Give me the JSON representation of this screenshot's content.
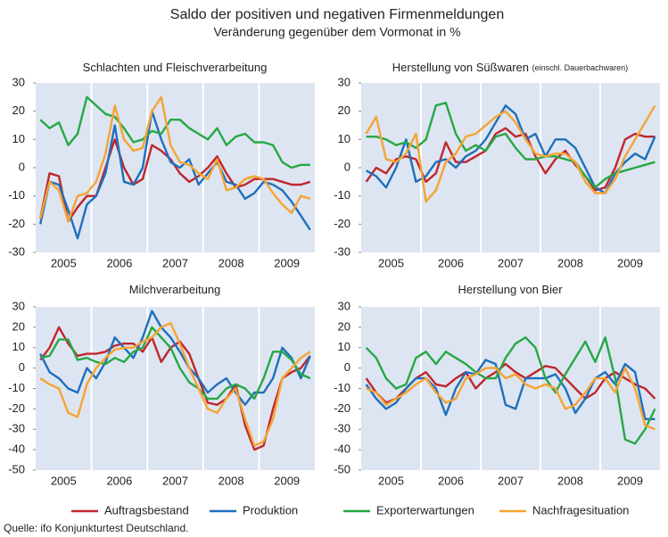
{
  "title": "Saldo der positiven und negativen Firmenmeldungen",
  "subtitle": "Veränderung gegenüber dem Vormonat in %",
  "source": "Quelle: ifo Konjunkturtest Deutschland.",
  "chart_data": [
    {
      "type": "line",
      "title": "Schlachten und Fleischverarbeitung",
      "categories": [
        null,
        null,
        null,
        "2005",
        null,
        null,
        null,
        null,
        null,
        "2006",
        null,
        null,
        null,
        null,
        null,
        "2007",
        null,
        null,
        null,
        null,
        null,
        "2008",
        null,
        null,
        null,
        null,
        null,
        "2009",
        null,
        null
      ],
      "ylim": [
        -30,
        30
      ],
      "yticks": [
        -30,
        -20,
        -10,
        0,
        10,
        20,
        30
      ],
      "series": [
        {
          "name": "Auftragsbestand",
          "color": "#c0272d",
          "values": [
            -18,
            -2,
            -3,
            -19,
            -14,
            -10,
            -10,
            0,
            10,
            0,
            -6,
            -4,
            8,
            6,
            3,
            -2,
            -5,
            -3,
            0,
            4,
            -2,
            -7,
            -6,
            -4,
            -4,
            -4,
            -5,
            -6,
            -6,
            -5
          ]
        },
        {
          "name": "Produktion",
          "color": "#1f6fbb",
          "values": [
            -20,
            -5,
            -6,
            -15,
            -25,
            -13,
            -10,
            -2,
            15,
            -5,
            -6,
            0,
            20,
            10,
            2,
            0,
            3,
            -6,
            -2,
            2,
            -5,
            -6,
            -11,
            -9,
            -5,
            -6,
            -8,
            -12,
            -17,
            -22
          ]
        },
        {
          "name": "Exporterwartungen",
          "color": "#27a844",
          "values": [
            17,
            14,
            16,
            8,
            12,
            25,
            22,
            19,
            18,
            14,
            9,
            10,
            13,
            12,
            17,
            17,
            14,
            12,
            10,
            14,
            8,
            11,
            12,
            9,
            9,
            8,
            2,
            0,
            1,
            1
          ]
        },
        {
          "name": "Nachfragesituation",
          "color": "#f5a432",
          "values": [
            -18,
            -5,
            -8,
            -19,
            -10,
            -9,
            -5,
            5,
            22,
            10,
            6,
            7,
            20,
            25,
            8,
            2,
            1,
            -2,
            -4,
            3,
            -8,
            -7,
            -4,
            -3,
            -4,
            -9,
            -13,
            -16,
            -10,
            -11
          ]
        }
      ]
    },
    {
      "type": "line",
      "title": "Herstellung von Süßwaren",
      "note": "(einschl. Dauerbachwaren)",
      "categories": [
        null,
        null,
        null,
        "2005",
        null,
        null,
        null,
        null,
        null,
        "2006",
        null,
        null,
        null,
        null,
        null,
        "2007",
        null,
        null,
        null,
        null,
        null,
        "2008",
        null,
        null,
        null,
        null,
        null,
        "2009",
        null,
        null
      ],
      "ylim": [
        -30,
        30
      ],
      "yticks": [
        -30,
        -20,
        -10,
        0,
        10,
        20,
        30
      ],
      "series": [
        {
          "name": "Auftragsbestand",
          "color": "#c0272d",
          "values": [
            -5,
            0,
            -2,
            3,
            4,
            3,
            -5,
            -2,
            9,
            2,
            2,
            4,
            6,
            12,
            14,
            11,
            12,
            4,
            -2,
            3,
            6,
            1,
            -3,
            -8,
            -7,
            0,
            10,
            12,
            11,
            11
          ]
        },
        {
          "name": "Produktion",
          "color": "#1f6fbb",
          "values": [
            -1,
            -3,
            -7,
            0,
            10,
            -5,
            -3,
            2,
            3,
            0,
            4,
            6,
            10,
            16,
            22,
            19,
            10,
            12,
            4,
            10,
            10,
            7,
            0,
            -7,
            -9,
            -2,
            2,
            5,
            3,
            11
          ]
        },
        {
          "name": "Exporterwartungen",
          "color": "#27a844",
          "values": [
            11,
            11,
            10,
            8,
            9,
            7,
            10,
            22,
            23,
            12,
            6,
            8,
            6,
            11,
            12,
            7,
            3,
            3,
            4,
            4,
            3,
            2,
            -3,
            -7,
            -4,
            -2,
            -1,
            0,
            1,
            2
          ]
        },
        {
          "name": "Nachfragesituation",
          "color": "#f5a432",
          "values": [
            12,
            18,
            3,
            2,
            5,
            12,
            -12,
            -8,
            2,
            5,
            11,
            12,
            15,
            18,
            20,
            16,
            10,
            5,
            4,
            5,
            5,
            2,
            -5,
            -9,
            -9,
            -4,
            4,
            10,
            16,
            22
          ]
        }
      ]
    },
    {
      "type": "line",
      "title": "Milchverarbeitung",
      "categories": [
        null,
        null,
        null,
        "2005",
        null,
        null,
        null,
        null,
        null,
        "2006",
        null,
        null,
        null,
        null,
        null,
        "2007",
        null,
        null,
        null,
        null,
        null,
        "2008",
        null,
        null,
        null,
        null,
        null,
        "2009",
        null,
        null
      ],
      "ylim": [
        -50,
        30
      ],
      "yticks": [
        -50,
        -40,
        -30,
        -20,
        -10,
        0,
        10,
        20,
        30
      ],
      "series": [
        {
          "name": "Auftragsbestand",
          "color": "#c0272d",
          "values": [
            4,
            10,
            20,
            12,
            6,
            7,
            7,
            8,
            11,
            12,
            12,
            8,
            15,
            3,
            10,
            13,
            7,
            -5,
            -17,
            -18,
            -15,
            -8,
            -28,
            -40,
            -38,
            -20,
            -5,
            -2,
            0,
            6
          ]
        },
        {
          "name": "Produktion",
          "color": "#1f6fbb",
          "values": [
            7,
            -2,
            -5,
            -10,
            -12,
            0,
            -5,
            3,
            15,
            10,
            5,
            15,
            28,
            20,
            15,
            8,
            0,
            -5,
            -12,
            -8,
            -5,
            -12,
            -18,
            -12,
            -12,
            -5,
            10,
            5,
            -5,
            6
          ]
        },
        {
          "name": "Exporterwartungen",
          "color": "#27a844",
          "values": [
            5,
            6,
            14,
            14,
            4,
            5,
            3,
            2,
            5,
            3,
            8,
            10,
            20,
            15,
            10,
            0,
            -7,
            -10,
            -15,
            -15,
            -10,
            -8,
            -10,
            -15,
            -5,
            8,
            8,
            4,
            -3,
            -5
          ]
        },
        {
          "name": "Nachfragesituation",
          "color": "#f5a432",
          "values": [
            -5,
            -8,
            -10,
            -22,
            -24,
            -8,
            0,
            5,
            9,
            10,
            10,
            13,
            15,
            20,
            22,
            12,
            0,
            -10,
            -20,
            -22,
            -15,
            -10,
            -25,
            -38,
            -36,
            -25,
            -5,
            0,
            5,
            8
          ]
        }
      ]
    },
    {
      "type": "line",
      "title": "Herstellung von Bier",
      "categories": [
        null,
        null,
        null,
        "2005",
        null,
        null,
        null,
        null,
        null,
        "2006",
        null,
        null,
        null,
        null,
        null,
        "2007",
        null,
        null,
        null,
        null,
        null,
        "2008",
        null,
        null,
        null,
        null,
        null,
        "2009",
        null,
        null
      ],
      "ylim": [
        -50,
        30
      ],
      "yticks": [
        -50,
        -40,
        -30,
        -20,
        -10,
        0,
        10,
        20,
        30
      ],
      "series": [
        {
          "name": "Auftragsbestand",
          "color": "#c0272d",
          "values": [
            -5,
            -12,
            -17,
            -15,
            -10,
            -5,
            -2,
            -8,
            -9,
            -5,
            -2,
            -10,
            -5,
            -2,
            2,
            -2,
            -5,
            -2,
            1,
            0,
            -5,
            -10,
            -15,
            -12,
            -5,
            -2,
            -5,
            -8,
            -10,
            -15
          ]
        },
        {
          "name": "Produktion",
          "color": "#1f6fbb",
          "values": [
            -8,
            -15,
            -20,
            -17,
            -10,
            -5,
            -5,
            -10,
            -23,
            -10,
            -2,
            -3,
            4,
            2,
            -18,
            -20,
            -5,
            -5,
            -5,
            -3,
            -10,
            -22,
            -15,
            -5,
            -2,
            -8,
            2,
            -2,
            -25,
            -25
          ]
        },
        {
          "name": "Exporterwartungen",
          "color": "#27a844",
          "values": [
            10,
            5,
            -5,
            -10,
            -8,
            5,
            8,
            2,
            8,
            5,
            2,
            -2,
            -5,
            -5,
            5,
            12,
            15,
            10,
            -5,
            -12,
            -3,
            5,
            13,
            3,
            15,
            -5,
            -35,
            -37,
            -30,
            -20
          ]
        },
        {
          "name": "Nachfragesituation",
          "color": "#f5a432",
          "values": [
            -10,
            -12,
            -18,
            -15,
            -12,
            -8,
            -5,
            -12,
            -17,
            -15,
            -5,
            -3,
            0,
            0,
            -5,
            -3,
            -8,
            -10,
            -8,
            -10,
            -20,
            -18,
            -12,
            -5,
            -5,
            -12,
            0,
            -10,
            -28,
            -30
          ]
        }
      ]
    }
  ]
}
